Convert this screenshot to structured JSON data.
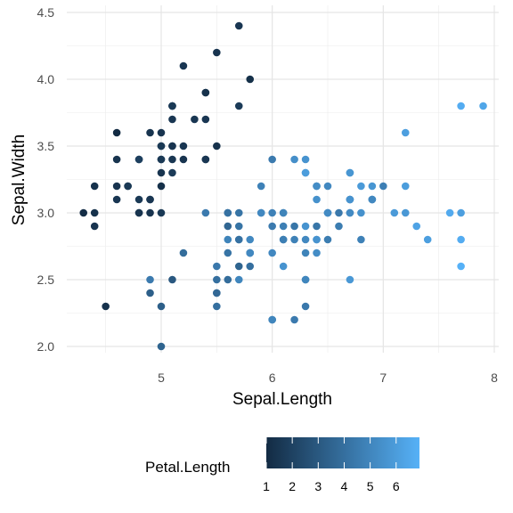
{
  "chart_data": {
    "type": "scatter",
    "x_label": "Sepal.Length",
    "y_label": "Sepal.Width",
    "xlim": [
      4.3,
      7.9
    ],
    "ylim": [
      2.0,
      4.4
    ],
    "x_ticks": [
      5,
      6,
      7,
      8
    ],
    "x_tick_labels": [
      "5",
      "6",
      "7",
      "8"
    ],
    "y_ticks": [
      2.0,
      2.5,
      3.0,
      3.5,
      4.0,
      4.5
    ],
    "y_tick_labels": [
      "2.0",
      "2.5",
      "3.0",
      "3.5",
      "4.0",
      "4.5"
    ],
    "grid": true,
    "legend": {
      "title": "Petal.Length",
      "placement": "bottom",
      "type": "colorbar",
      "range": [
        1.0,
        6.9
      ],
      "ticks": [
        1,
        2,
        3,
        4,
        5,
        6
      ],
      "tick_labels": [
        "1",
        "2",
        "3",
        "4",
        "5",
        "6"
      ],
      "color_low": "#132B43",
      "color_high": "#56B1F7"
    },
    "points": [
      [
        5.1,
        3.5,
        1.4
      ],
      [
        4.9,
        3.0,
        1.4
      ],
      [
        4.7,
        3.2,
        1.3
      ],
      [
        4.6,
        3.1,
        1.5
      ],
      [
        5.0,
        3.6,
        1.4
      ],
      [
        5.4,
        3.9,
        1.7
      ],
      [
        4.6,
        3.4,
        1.4
      ],
      [
        5.0,
        3.4,
        1.5
      ],
      [
        4.4,
        2.9,
        1.4
      ],
      [
        4.9,
        3.1,
        1.5
      ],
      [
        5.4,
        3.7,
        1.5
      ],
      [
        4.8,
        3.4,
        1.6
      ],
      [
        4.8,
        3.0,
        1.4
      ],
      [
        4.3,
        3.0,
        1.1
      ],
      [
        5.8,
        4.0,
        1.2
      ],
      [
        5.7,
        4.4,
        1.5
      ],
      [
        5.4,
        3.9,
        1.3
      ],
      [
        5.1,
        3.5,
        1.4
      ],
      [
        5.7,
        3.8,
        1.7
      ],
      [
        5.1,
        3.8,
        1.5
      ],
      [
        5.4,
        3.4,
        1.7
      ],
      [
        5.1,
        3.7,
        1.5
      ],
      [
        4.6,
        3.6,
        1.0
      ],
      [
        5.1,
        3.3,
        1.7
      ],
      [
        4.8,
        3.4,
        1.9
      ],
      [
        5.0,
        3.0,
        1.6
      ],
      [
        5.0,
        3.4,
        1.6
      ],
      [
        5.2,
        3.5,
        1.5
      ],
      [
        5.2,
        3.4,
        1.4
      ],
      [
        4.7,
        3.2,
        1.6
      ],
      [
        4.8,
        3.1,
        1.6
      ],
      [
        5.4,
        3.4,
        1.5
      ],
      [
        5.2,
        4.1,
        1.5
      ],
      [
        5.5,
        4.2,
        1.4
      ],
      [
        4.9,
        3.1,
        1.5
      ],
      [
        5.0,
        3.2,
        1.2
      ],
      [
        5.5,
        3.5,
        1.3
      ],
      [
        4.9,
        3.6,
        1.4
      ],
      [
        4.4,
        3.0,
        1.3
      ],
      [
        5.1,
        3.4,
        1.5
      ],
      [
        5.0,
        3.5,
        1.3
      ],
      [
        4.5,
        2.3,
        1.3
      ],
      [
        4.4,
        3.2,
        1.3
      ],
      [
        5.0,
        3.5,
        1.6
      ],
      [
        5.1,
        3.8,
        1.9
      ],
      [
        4.8,
        3.0,
        1.4
      ],
      [
        5.1,
        3.8,
        1.6
      ],
      [
        4.6,
        3.2,
        1.4
      ],
      [
        5.3,
        3.7,
        1.5
      ],
      [
        5.0,
        3.3,
        1.4
      ],
      [
        7.0,
        3.2,
        4.7
      ],
      [
        6.4,
        3.2,
        4.5
      ],
      [
        6.9,
        3.1,
        4.9
      ],
      [
        5.5,
        2.3,
        4.0
      ],
      [
        6.5,
        2.8,
        4.6
      ],
      [
        5.7,
        2.8,
        4.5
      ],
      [
        6.3,
        3.3,
        4.7
      ],
      [
        4.9,
        2.4,
        3.3
      ],
      [
        6.6,
        2.9,
        4.6
      ],
      [
        5.2,
        2.7,
        3.9
      ],
      [
        5.0,
        2.0,
        3.5
      ],
      [
        5.9,
        3.0,
        4.2
      ],
      [
        6.0,
        2.2,
        4.0
      ],
      [
        6.1,
        2.9,
        4.7
      ],
      [
        5.6,
        2.9,
        3.6
      ],
      [
        6.7,
        3.1,
        4.4
      ],
      [
        5.6,
        3.0,
        4.5
      ],
      [
        5.8,
        2.7,
        4.1
      ],
      [
        6.2,
        2.2,
        4.5
      ],
      [
        5.6,
        2.5,
        3.9
      ],
      [
        5.9,
        3.2,
        4.8
      ],
      [
        6.1,
        2.8,
        4.0
      ],
      [
        6.3,
        2.5,
        4.9
      ],
      [
        6.1,
        2.8,
        4.7
      ],
      [
        6.4,
        2.9,
        4.3
      ],
      [
        6.6,
        3.0,
        4.4
      ],
      [
        6.8,
        2.8,
        4.8
      ],
      [
        6.7,
        3.0,
        5.0
      ],
      [
        6.0,
        2.9,
        4.5
      ],
      [
        5.7,
        2.6,
        3.5
      ],
      [
        5.5,
        2.4,
        3.8
      ],
      [
        5.5,
        2.4,
        3.7
      ],
      [
        5.8,
        2.7,
        3.9
      ],
      [
        6.0,
        2.7,
        5.1
      ],
      [
        5.4,
        3.0,
        4.5
      ],
      [
        6.0,
        3.4,
        4.5
      ],
      [
        6.7,
        3.1,
        4.7
      ],
      [
        6.3,
        2.3,
        4.4
      ],
      [
        5.6,
        3.0,
        4.1
      ],
      [
        5.5,
        2.5,
        4.0
      ],
      [
        5.5,
        2.6,
        4.4
      ],
      [
        6.1,
        3.0,
        4.6
      ],
      [
        5.8,
        2.6,
        4.0
      ],
      [
        5.0,
        2.3,
        3.3
      ],
      [
        5.6,
        2.7,
        4.2
      ],
      [
        5.7,
        3.0,
        4.2
      ],
      [
        5.7,
        2.9,
        4.2
      ],
      [
        6.2,
        2.9,
        4.3
      ],
      [
        5.1,
        2.5,
        3.0
      ],
      [
        5.7,
        2.8,
        4.1
      ],
      [
        6.3,
        3.3,
        6.0
      ],
      [
        5.8,
        2.7,
        5.1
      ],
      [
        7.1,
        3.0,
        5.9
      ],
      [
        6.3,
        2.9,
        5.6
      ],
      [
        6.5,
        3.0,
        5.8
      ],
      [
        7.6,
        3.0,
        6.6
      ],
      [
        4.9,
        2.5,
        4.5
      ],
      [
        7.3,
        2.9,
        6.3
      ],
      [
        6.7,
        2.5,
        5.8
      ],
      [
        7.2,
        3.6,
        6.1
      ],
      [
        6.5,
        3.2,
        5.1
      ],
      [
        6.4,
        2.7,
        5.3
      ],
      [
        6.8,
        3.0,
        5.5
      ],
      [
        5.7,
        2.5,
        5.0
      ],
      [
        5.8,
        2.8,
        5.1
      ],
      [
        6.4,
        3.2,
        5.3
      ],
      [
        6.5,
        3.0,
        5.5
      ],
      [
        7.7,
        3.8,
        6.7
      ],
      [
        7.7,
        2.6,
        6.9
      ],
      [
        6.0,
        2.2,
        5.0
      ],
      [
        6.9,
        3.2,
        5.7
      ],
      [
        5.6,
        2.8,
        4.9
      ],
      [
        7.7,
        2.8,
        6.7
      ],
      [
        6.3,
        2.7,
        4.9
      ],
      [
        6.7,
        3.3,
        5.7
      ],
      [
        7.2,
        3.2,
        6.0
      ],
      [
        6.2,
        2.8,
        4.8
      ],
      [
        6.1,
        3.0,
        4.9
      ],
      [
        6.4,
        2.8,
        5.6
      ],
      [
        7.2,
        3.0,
        5.8
      ],
      [
        7.4,
        2.8,
        6.1
      ],
      [
        7.9,
        3.8,
        6.4
      ],
      [
        6.4,
        2.8,
        5.6
      ],
      [
        6.3,
        2.8,
        5.1
      ],
      [
        6.1,
        2.6,
        5.6
      ],
      [
        7.7,
        3.0,
        6.1
      ],
      [
        6.3,
        3.4,
        5.6
      ],
      [
        6.4,
        3.1,
        5.5
      ],
      [
        6.0,
        3.0,
        4.8
      ],
      [
        6.9,
        3.1,
        5.4
      ],
      [
        6.7,
        3.1,
        5.6
      ],
      [
        6.9,
        3.1,
        5.1
      ],
      [
        5.8,
        2.7,
        5.1
      ],
      [
        6.8,
        3.2,
        5.9
      ],
      [
        6.7,
        3.3,
        5.7
      ],
      [
        6.7,
        3.0,
        5.2
      ],
      [
        6.3,
        2.5,
        5.0
      ],
      [
        6.5,
        3.0,
        5.2
      ],
      [
        6.2,
        3.4,
        5.4
      ],
      [
        5.9,
        3.0,
        5.1
      ]
    ]
  }
}
